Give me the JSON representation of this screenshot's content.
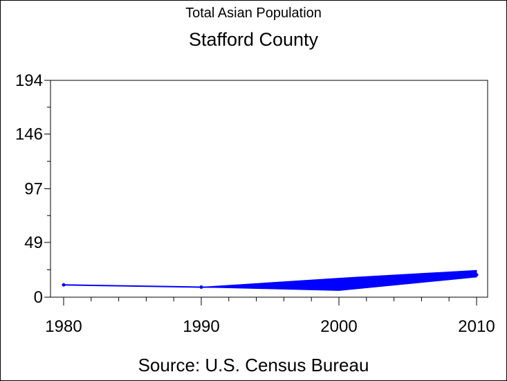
{
  "title": "Total Asian Population",
  "subtitle": "Stafford County",
  "source": "Source: U.S. Census Bureau",
  "colors": {
    "series": "#0000ff",
    "axis": "#000000",
    "background": "#ffffff"
  },
  "chart_data": {
    "type": "line",
    "title": "Total Asian Population",
    "subtitle": "Stafford County",
    "xlabel": "",
    "ylabel": "",
    "x_ticks": [
      "1980",
      "1990",
      "2000",
      "2010"
    ],
    "y_ticks": [
      "0",
      "49",
      "97",
      "146",
      "194"
    ],
    "xlim": [
      1979,
      2010.5
    ],
    "ylim": [
      0,
      194
    ],
    "grid": false,
    "legend": "none",
    "series": [
      {
        "values": [
          {
            "x": 1980,
            "y": 11
          },
          {
            "x": 1990,
            "y": 9
          },
          {
            "x": 2000,
            "y": 9
          },
          {
            "x": 2010,
            "y": 20
          }
        ],
        "band": [
          {
            "x": 1990,
            "low": 9,
            "high": 9
          },
          {
            "x": 2000,
            "low": 6,
            "high": 17
          },
          {
            "x": 2010,
            "low": 18,
            "high": 24
          }
        ]
      }
    ]
  }
}
